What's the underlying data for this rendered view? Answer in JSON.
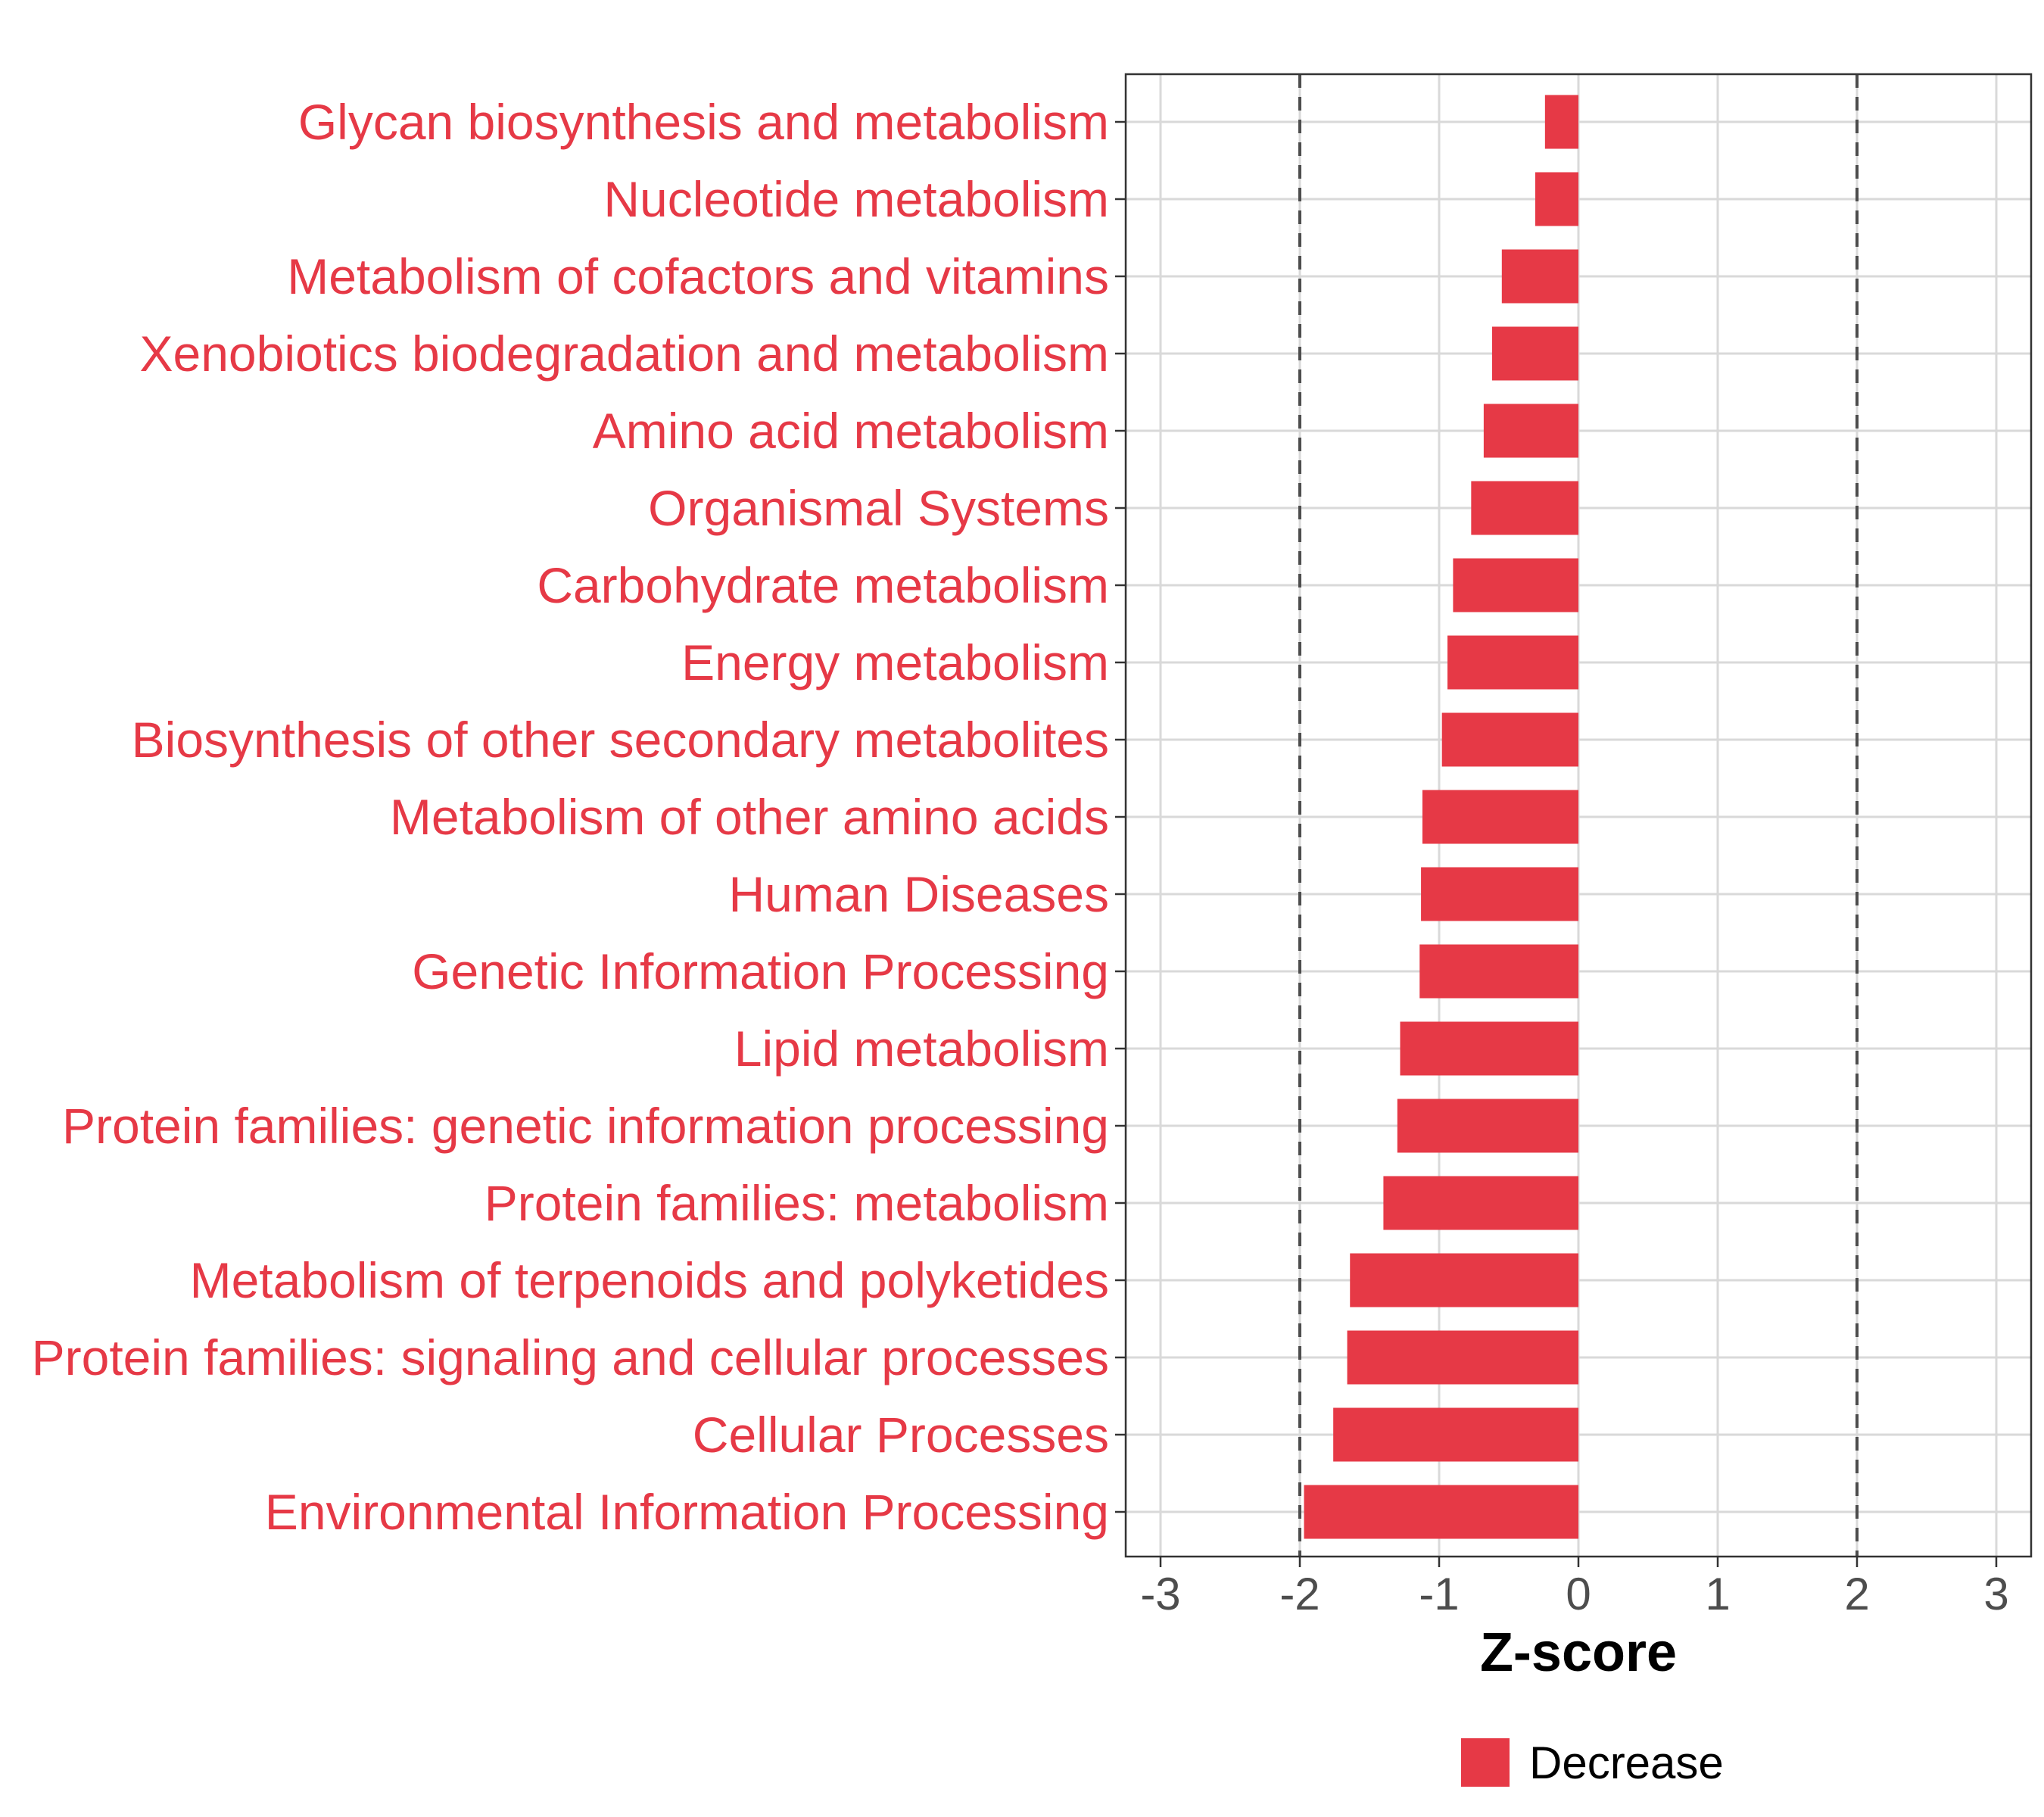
{
  "chart_data": {
    "type": "bar",
    "orientation": "horizontal",
    "categories": [
      "Glycan biosynthesis and metabolism",
      "Nucleotide metabolism",
      "Metabolism of cofactors and vitamins",
      "Xenobiotics biodegradation and metabolism",
      "Amino acid metabolism",
      "Organismal Systems",
      "Carbohydrate metabolism",
      "Energy metabolism",
      "Biosynthesis of other secondary metabolites",
      "Metabolism of other amino acids",
      "Human Diseases",
      "Genetic Information Processing",
      "Lipid metabolism",
      "Protein families: genetic information processing",
      "Protein families: metabolism",
      "Metabolism of terpenoids and polyketides",
      "Protein families: signaling and cellular processes",
      "Cellular Processes",
      "Environmental Information Processing"
    ],
    "values": [
      -0.24,
      -0.31,
      -0.55,
      -0.62,
      -0.68,
      -0.77,
      -0.9,
      -0.94,
      -0.98,
      -1.12,
      -1.13,
      -1.14,
      -1.28,
      -1.3,
      -1.4,
      -1.64,
      -1.66,
      -1.76,
      -1.97
    ],
    "xlabel": "Z-score",
    "ylabel": "",
    "xlim": [
      -3.25,
      3.25
    ],
    "xticks": [
      "-3",
      "-2",
      "-1",
      "0",
      "1",
      "2",
      "3"
    ],
    "threshold_lines": [
      -2,
      2
    ],
    "grid": true,
    "legend": {
      "position": "bottom",
      "entries": [
        {
          "label": "Decrease",
          "color": "#e63946"
        }
      ]
    },
    "colors": {
      "bar": "#e63946",
      "label": "#e63946",
      "grid": "#d9d9d9",
      "threshold": "#4d4d4d"
    }
  }
}
